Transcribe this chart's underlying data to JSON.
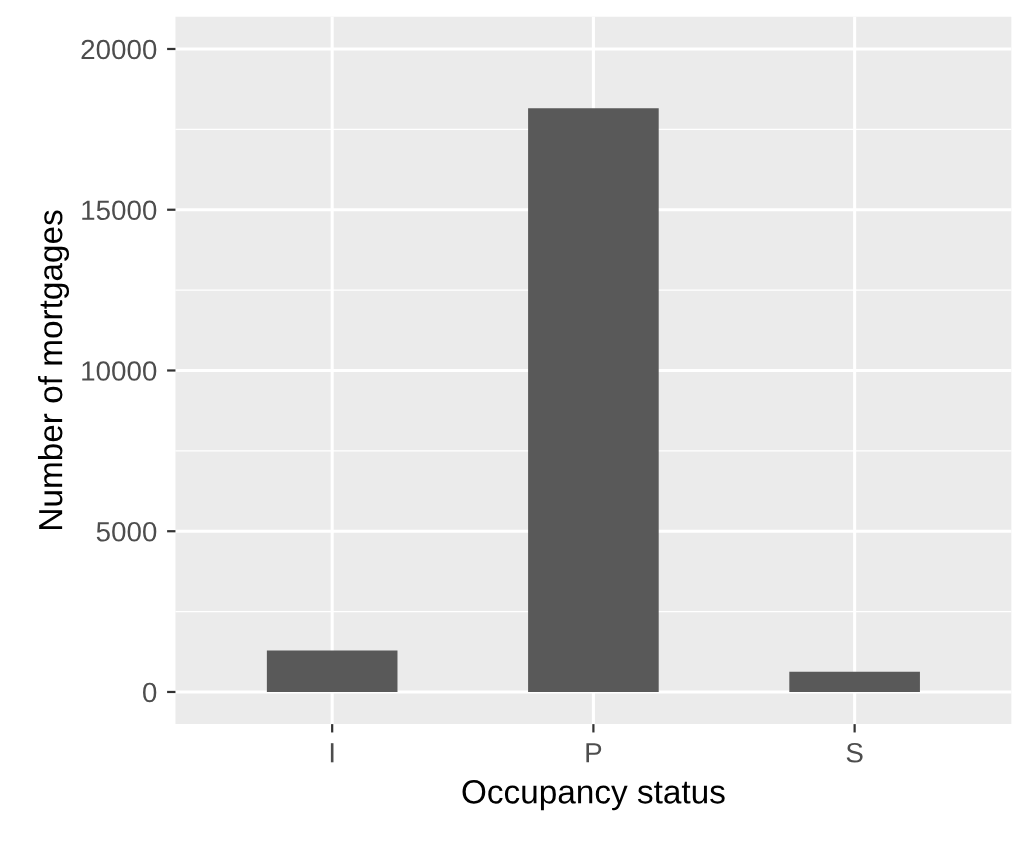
{
  "chart_data": {
    "type": "bar",
    "xlabel": "Occupancy status",
    "ylabel": "Number of mortgages",
    "categories": [
      "I",
      "P",
      "S"
    ],
    "values": [
      1290,
      18160,
      630
    ],
    "color": "#595959",
    "ylim": [
      -1000,
      21000
    ],
    "yticks": [
      0,
      5000,
      10000,
      15000,
      20000
    ],
    "grid": true
  }
}
